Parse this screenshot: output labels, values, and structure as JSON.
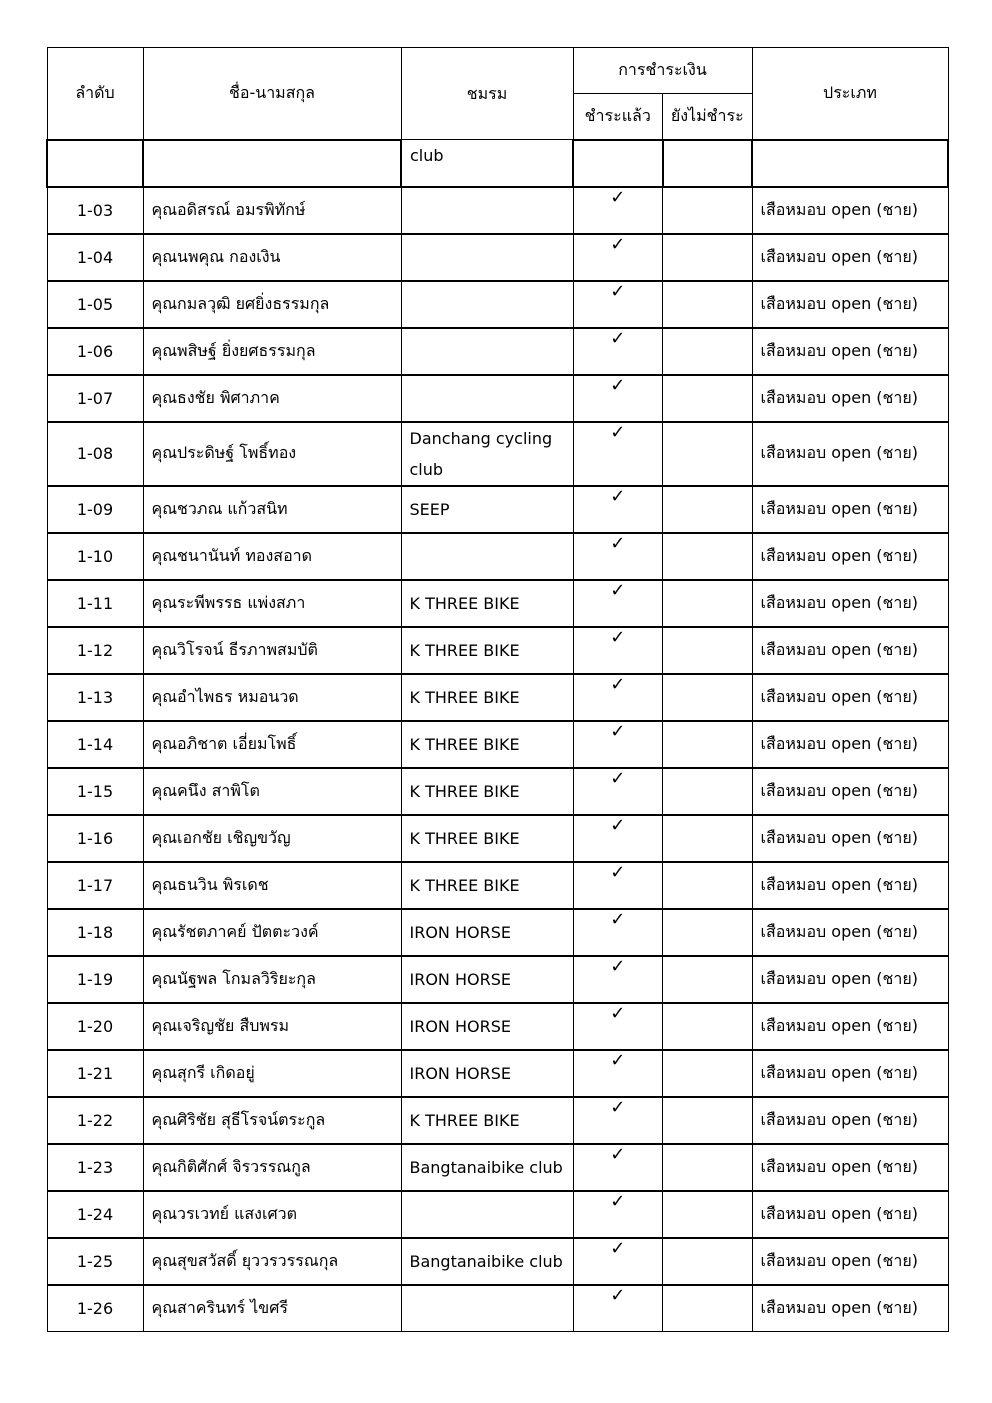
{
  "header": {
    "no": "ลำดับ",
    "name": "ชื่อ-นามสกุล",
    "club": "ชมรม",
    "payment": "การชำระเงิน",
    "paid": "ชำระแล้ว",
    "unpaid": "ยังไม่ชำระ",
    "type": "ประเภท"
  },
  "continuation_row": {
    "club": "club"
  },
  "check_icon": "check-icon",
  "rows": [
    {
      "no": "1-03",
      "name": "คุณอดิสรณ์  อมรพิทักษ์",
      "club": "",
      "paid": true,
      "type": "เสือหมอบ open (ชาย)"
    },
    {
      "no": "1-04",
      "name": "คุณนพคุณ  กองเงิน",
      "club": "",
      "paid": true,
      "type": "เสือหมอบ open (ชาย)"
    },
    {
      "no": "1-05",
      "name": "คุณกมลวุฒิ  ยศยิ่งธรรมกุล",
      "club": "",
      "paid": true,
      "type": "เสือหมอบ open (ชาย)"
    },
    {
      "no": "1-06",
      "name": "คุณพสิษฐ์  ยิ่งยศธรรมกุล",
      "club": "",
      "paid": true,
      "type": "เสือหมอบ open (ชาย)"
    },
    {
      "no": "1-07",
      "name": "คุณธงชัย พิศาภาค",
      "club": "",
      "paid": true,
      "type": "เสือหมอบ open (ชาย)"
    },
    {
      "no": "1-08",
      "name": "คุณประดิษฐ์ โพธิ์ทอง",
      "club": "Danchang cycling club",
      "paid": true,
      "type": "เสือหมอบ open (ชาย)"
    },
    {
      "no": "1-09",
      "name": "คุณชวภณ แก้วสนิท",
      "club": "SEEP",
      "paid": true,
      "type": "เสือหมอบ open (ชาย)"
    },
    {
      "no": "1-10",
      "name": "คุณชนานันท์ ทองสอาด",
      "club": "",
      "paid": true,
      "type": "เสือหมอบ open (ชาย)"
    },
    {
      "no": "1-11",
      "name": "คุณระพีพรรธ แพ่งสภา",
      "club": "K THREE BIKE",
      "paid": true,
      "type": "เสือหมอบ open (ชาย)"
    },
    {
      "no": "1-12",
      "name": "คุณวิโรจน์ ธีรภาพสมบัติ",
      "club": "K THREE BIKE",
      "paid": true,
      "type": "เสือหมอบ open (ชาย)"
    },
    {
      "no": "1-13",
      "name": "คุณอำไพธร หมอนวด",
      "club": "K THREE BIKE",
      "paid": true,
      "type": "เสือหมอบ open (ชาย)"
    },
    {
      "no": "1-14",
      "name": "คุณอภิชาต เอี่ยมโพธิ์",
      "club": "K THREE BIKE",
      "paid": true,
      "type": "เสือหมอบ open (ชาย)"
    },
    {
      "no": "1-15",
      "name": "คุณคนึง สาพิโต",
      "club": "K THREE BIKE",
      "paid": true,
      "type": "เสือหมอบ open (ชาย)"
    },
    {
      "no": "1-16",
      "name": "คุณเอกชัย เชิญขวัญ",
      "club": "K THREE BIKE",
      "paid": true,
      "type": "เสือหมอบ open (ชาย)"
    },
    {
      "no": "1-17",
      "name": "คุณธนวิน พิรเดช",
      "club": "K THREE BIKE",
      "paid": true,
      "type": "เสือหมอบ open (ชาย)"
    },
    {
      "no": "1-18",
      "name": "คุณรัชตภาคย์ ปัตตะวงค์",
      "club": "IRON HORSE",
      "paid": true,
      "type": "เสือหมอบ open (ชาย)"
    },
    {
      "no": "1-19",
      "name": "คุณนัฐพล โกมลวิริยะกุล",
      "club": "IRON HORSE",
      "paid": true,
      "type": "เสือหมอบ open (ชาย)"
    },
    {
      "no": "1-20",
      "name": "คุณเจริญชัย สืบพรม",
      "club": "IRON HORSE",
      "paid": true,
      "type": "เสือหมอบ open (ชาย)"
    },
    {
      "no": "1-21",
      "name": "คุณสุกรี เกิดอยู่",
      "club": "IRON HORSE",
      "paid": true,
      "type": "เสือหมอบ open (ชาย)"
    },
    {
      "no": "1-22",
      "name": "คุณศิริชัย สุธีโรจน์ตระกูล",
      "club": "K THREE BIKE",
      "paid": true,
      "type": "เสือหมอบ open (ชาย)"
    },
    {
      "no": "1-23",
      "name": "คุณกิติศักศ์ จิรวรรณกูล",
      "club": "Bangtanaibike club",
      "paid": true,
      "type": "เสือหมอบ open (ชาย)"
    },
    {
      "no": "1-24",
      "name": "คุณวรเวทย์ แสงเศวต",
      "club": "",
      "paid": true,
      "type": "เสือหมอบ open (ชาย)"
    },
    {
      "no": "1-25",
      "name": "คุณสุขสวัสดิ์ ยุววรวรรณกุล",
      "club": "Bangtanaibike club",
      "paid": true,
      "type": "เสือหมอบ open (ชาย)"
    },
    {
      "no": "1-26",
      "name": "คุณสาครินทร์ ไขศรี",
      "club": "",
      "paid": true,
      "type": "เสือหมอบ open (ชาย)"
    }
  ]
}
